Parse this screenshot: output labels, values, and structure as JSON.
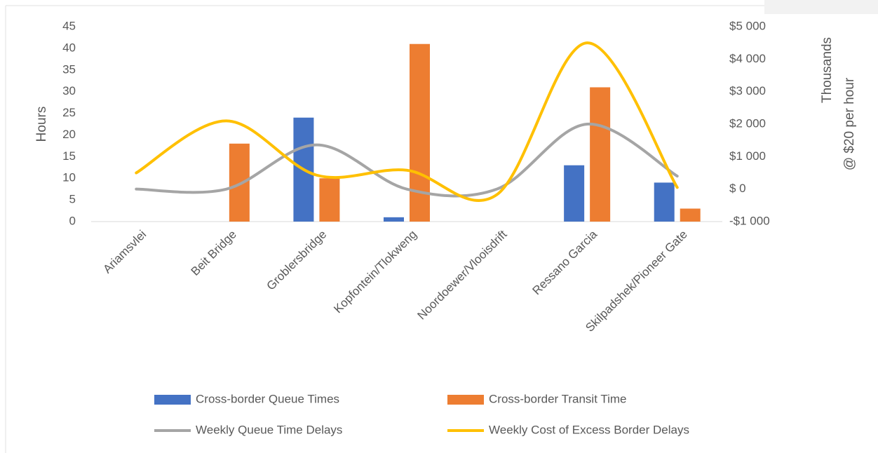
{
  "chart_data": {
    "type": "combo",
    "y_label": "Hours",
    "y2_label": "@ $20 per hour",
    "y2_unit_label": "Thousands",
    "categories": [
      "Ariamsvlei",
      "Beit Bridge",
      "Groblersbridge",
      "Kopfontein/Tlokweng",
      "Noordoewer/Vlooisdrift",
      "Ressano Garcia",
      "Skilpadshek/Pioneer Gate"
    ],
    "series": [
      {
        "name": "Cross-border Queue Times",
        "type": "bar",
        "color": "#4472c4",
        "values": [
          0,
          0,
          24,
          1,
          0,
          13,
          9
        ]
      },
      {
        "name": "Cross-border Transit Time",
        "type": "bar",
        "color": "#ed7d31",
        "values": [
          0,
          18,
          10,
          41,
          0,
          31,
          3
        ]
      },
      {
        "name": "Weekly Queue Time Delays",
        "type": "line",
        "axis": "y2",
        "smooth": true,
        "color": "#a5a5a5",
        "values": [
          0,
          0,
          1360,
          0,
          0,
          2000,
          400
        ]
      },
      {
        "name": "Weekly Cost of Excess Border Delays",
        "type": "line",
        "axis": "y2",
        "smooth": true,
        "color": "#ffc000",
        "values": [
          500,
          2100,
          430,
          580,
          -170,
          4500,
          50
        ]
      }
    ],
    "ylim": [
      0,
      45
    ],
    "yticks": [
      0,
      5,
      10,
      15,
      20,
      25,
      30,
      35,
      40,
      45
    ],
    "y2lim": [
      -1000,
      5000
    ],
    "y2ticks": [
      {
        "value": -1000,
        "label": "-$1 000"
      },
      {
        "value": 0,
        "label": "$ 0"
      },
      {
        "value": 1000,
        "label": "$1 000"
      },
      {
        "value": 2000,
        "label": "$2 000"
      },
      {
        "value": 3000,
        "label": "$3 000"
      },
      {
        "value": 4000,
        "label": "$4 000"
      },
      {
        "value": 5000,
        "label": "$5 000"
      }
    ],
    "grid": false,
    "legend": "bottom"
  }
}
